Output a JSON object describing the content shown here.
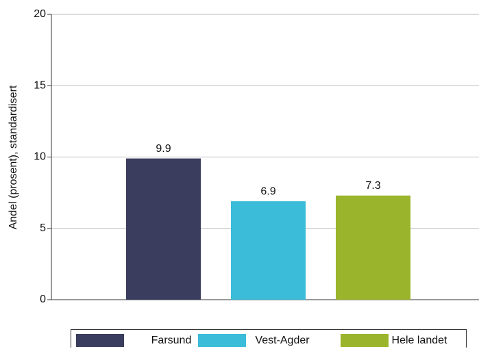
{
  "chart_data": {
    "type": "bar",
    "y_label": "Andel (prosent), standardisert",
    "categories": [
      "Farsund",
      "Vest-Agder",
      "Hele landet"
    ],
    "values": [
      9.9,
      6.9,
      7.3
    ],
    "colors": [
      "#3a3d5e",
      "#3bbcd9",
      "#9ab42b"
    ],
    "ylim": [
      0,
      20
    ],
    "yticks": [
      0,
      5,
      10,
      15,
      20
    ],
    "grid": true,
    "legend": "bottom"
  }
}
